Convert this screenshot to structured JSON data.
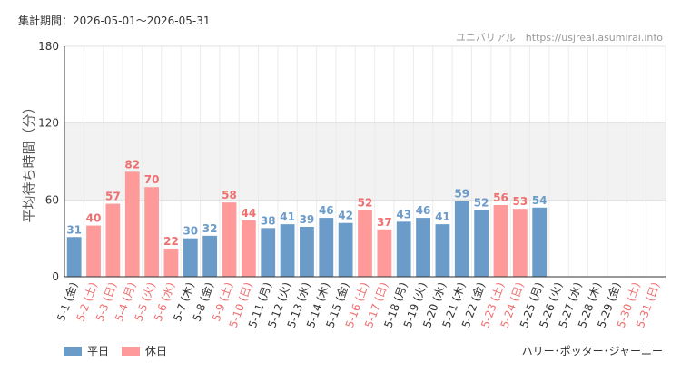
{
  "header": {
    "period": "集計期間：2026-05-01～2026-05-31",
    "source": "ユニバリアル　https://usjreal.asumirai.info"
  },
  "footer": {
    "attraction": "ハリー･ポッター･ジャーニー"
  },
  "chart_data": {
    "type": "bar",
    "ylabel": "平均待ち時間（分）",
    "ylim": [
      0,
      180
    ],
    "yticks": [
      0,
      60,
      120,
      180
    ],
    "shaded_band": [
      60,
      120
    ],
    "colors": {
      "weekday": "#6b9bc8",
      "holiday": "#ff9a9a",
      "holiday_label": "#ef6f6f"
    },
    "legend": [
      {
        "key": "weekday",
        "label": "平日"
      },
      {
        "key": "holiday",
        "label": "休日"
      }
    ],
    "categories": [
      "5-1 (金)",
      "5-2 (土)",
      "5-3 (日)",
      "5-4 (月)",
      "5-5 (火)",
      "5-6 (水)",
      "5-7 (木)",
      "5-8 (金)",
      "5-9 (土)",
      "5-10 (日)",
      "5-11 (月)",
      "5-12 (火)",
      "5-13 (水)",
      "5-14 (木)",
      "5-15 (金)",
      "5-16 (土)",
      "5-17 (日)",
      "5-18 (月)",
      "5-19 (火)",
      "5-20 (水)",
      "5-21 (木)",
      "5-22 (金)",
      "5-23 (土)",
      "5-24 (日)",
      "5-25 (月)",
      "5-26 (火)",
      "5-27 (水)",
      "5-28 (木)",
      "5-29 (金)",
      "5-30 (土)",
      "5-31 (日)"
    ],
    "day_type": [
      "weekday",
      "holiday",
      "holiday",
      "holiday",
      "holiday",
      "holiday",
      "weekday",
      "weekday",
      "holiday",
      "holiday",
      "weekday",
      "weekday",
      "weekday",
      "weekday",
      "weekday",
      "holiday",
      "holiday",
      "weekday",
      "weekday",
      "weekday",
      "weekday",
      "weekday",
      "holiday",
      "holiday",
      "weekday",
      "weekday",
      "weekday",
      "weekday",
      "weekday",
      "holiday",
      "holiday"
    ],
    "values": [
      31,
      40,
      57,
      82,
      70,
      22,
      30,
      32,
      58,
      44,
      38,
      41,
      39,
      46,
      42,
      52,
      37,
      43,
      46,
      41,
      59,
      52,
      56,
      53,
      54,
      null,
      null,
      null,
      null,
      null,
      null
    ]
  }
}
